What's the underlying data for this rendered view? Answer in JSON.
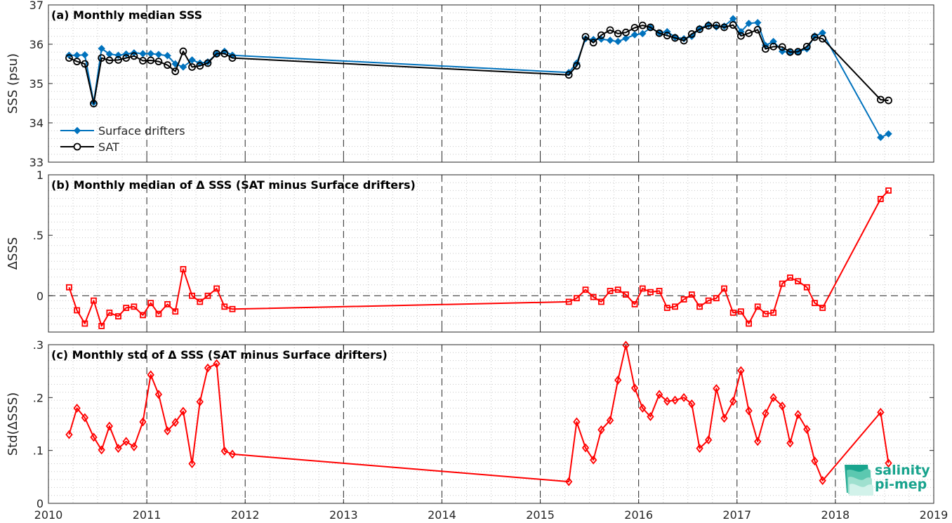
{
  "logo": {
    "line1": "salinity",
    "line2": "pi-mep",
    "color": "#18a38d"
  },
  "colors": {
    "drifters": "#0072bd",
    "sat": "#000000",
    "delta": "#ff0000",
    "grid": "#c8c8c8"
  },
  "chart_data": [
    {
      "type": "line",
      "title": "(a) Monthly median SSS",
      "ylabel": "SSS (psu)",
      "xlim": [
        2010,
        2019
      ],
      "ylim": [
        33,
        37
      ],
      "yticks": [
        33,
        34,
        35,
        36,
        37
      ],
      "xticks": [
        2010,
        2011,
        2012,
        2013,
        2014,
        2015,
        2016,
        2017,
        2018,
        2019
      ],
      "grid": "dotted",
      "legend_position": "lower-left",
      "x": [
        2010.21,
        2010.29,
        2010.37,
        2010.46,
        2010.54,
        2010.62,
        2010.71,
        2010.79,
        2010.87,
        2010.96,
        2011.04,
        2011.12,
        2011.21,
        2011.29,
        2011.37,
        2011.46,
        2011.54,
        2011.62,
        2011.71,
        2011.79,
        2011.87,
        2015.29,
        2015.37,
        2015.46,
        2015.54,
        2015.62,
        2015.71,
        2015.79,
        2015.87,
        2015.96,
        2016.04,
        2016.12,
        2016.21,
        2016.29,
        2016.37,
        2016.46,
        2016.54,
        2016.62,
        2016.71,
        2016.79,
        2016.87,
        2016.96,
        2017.04,
        2017.12,
        2017.21,
        2017.29,
        2017.37,
        2017.46,
        2017.54,
        2017.62,
        2017.71,
        2017.79,
        2017.87,
        2018.46,
        2018.54
      ],
      "series": [
        {
          "name": "Surface drifters",
          "marker": "diamond-filled",
          "values": [
            35.72,
            35.72,
            35.73,
            34.52,
            35.89,
            35.75,
            35.72,
            35.75,
            35.78,
            35.76,
            35.76,
            35.74,
            35.71,
            35.5,
            35.42,
            35.6,
            35.52,
            35.55,
            35.75,
            35.82,
            35.72,
            35.28,
            35.52,
            36.14,
            36.12,
            36.13,
            36.1,
            36.07,
            36.15,
            36.24,
            36.27,
            36.42,
            36.29,
            36.32,
            36.18,
            36.14,
            36.2,
            36.4,
            36.5,
            36.44,
            36.46,
            36.65,
            36.32,
            36.53,
            36.55,
            35.97,
            36.07,
            35.82,
            35.79,
            35.81,
            35.88,
            36.21,
            36.29,
            33.63,
            33.72
          ]
        },
        {
          "name": "SAT",
          "marker": "circle-open",
          "values": [
            35.65,
            35.56,
            35.5,
            34.49,
            35.65,
            35.59,
            35.6,
            35.65,
            35.7,
            35.58,
            35.59,
            35.56,
            35.47,
            35.31,
            35.82,
            35.42,
            35.45,
            35.52,
            35.76,
            35.76,
            35.65,
            35.22,
            35.45,
            36.19,
            36.04,
            36.23,
            36.36,
            36.27,
            36.3,
            36.42,
            36.48,
            36.43,
            36.28,
            36.22,
            36.16,
            36.09,
            36.26,
            36.38,
            36.47,
            36.48,
            36.43,
            36.49,
            36.21,
            36.28,
            36.37,
            35.88,
            35.94,
            35.93,
            35.8,
            35.81,
            35.94,
            36.18,
            36.14,
            34.59,
            34.57
          ]
        }
      ]
    },
    {
      "type": "line",
      "title": "(b) Monthly median of Δ SSS (SAT minus Surface drifters)",
      "ylabel": "ΔSSS",
      "xlim": [
        2010,
        2019
      ],
      "ylim": [
        -0.3,
        1
      ],
      "yticks": [
        0,
        0.5,
        1
      ],
      "xticks": [
        2010,
        2011,
        2012,
        2013,
        2014,
        2015,
        2016,
        2017,
        2018,
        2019
      ],
      "grid": "dotted",
      "zero_line": "dashed",
      "x": [
        2010.21,
        2010.29,
        2010.37,
        2010.46,
        2010.54,
        2010.62,
        2010.71,
        2010.79,
        2010.87,
        2010.96,
        2011.04,
        2011.12,
        2011.21,
        2011.29,
        2011.37,
        2011.46,
        2011.54,
        2011.62,
        2011.71,
        2011.79,
        2011.87,
        2015.29,
        2015.37,
        2015.46,
        2015.54,
        2015.62,
        2015.71,
        2015.79,
        2015.87,
        2015.96,
        2016.04,
        2016.12,
        2016.21,
        2016.29,
        2016.37,
        2016.46,
        2016.54,
        2016.62,
        2016.71,
        2016.79,
        2016.87,
        2016.96,
        2017.04,
        2017.12,
        2017.21,
        2017.29,
        2017.37,
        2017.46,
        2017.54,
        2017.62,
        2017.71,
        2017.79,
        2017.87,
        2018.46,
        2018.54
      ],
      "series": [
        {
          "marker": "square-open",
          "values": [
            0.07,
            -0.12,
            -0.23,
            -0.04,
            -0.25,
            -0.14,
            -0.17,
            -0.1,
            -0.09,
            -0.16,
            -0.06,
            -0.15,
            -0.07,
            -0.13,
            0.22,
            0.0,
            -0.05,
            0.0,
            0.06,
            -0.09,
            -0.11,
            -0.05,
            -0.02,
            0.05,
            -0.01,
            -0.05,
            0.04,
            0.05,
            0.01,
            -0.07,
            0.06,
            0.03,
            0.04,
            -0.1,
            -0.09,
            -0.03,
            0.01,
            -0.09,
            -0.04,
            -0.02,
            0.06,
            -0.14,
            -0.13,
            -0.23,
            -0.09,
            -0.15,
            -0.14,
            0.1,
            0.15,
            0.12,
            0.07,
            -0.06,
            -0.1,
            0.8,
            0.87
          ]
        }
      ]
    },
    {
      "type": "line",
      "title": "(c) Monthly std of Δ SSS (SAT minus Surface drifters)",
      "ylabel": "Std(ΔSSS)",
      "xlim": [
        2010,
        2019
      ],
      "ylim": [
        0,
        0.3
      ],
      "yticks": [
        0,
        0.1,
        0.2,
        0.3
      ],
      "xticks": [
        2010,
        2011,
        2012,
        2013,
        2014,
        2015,
        2016,
        2017,
        2018,
        2019
      ],
      "grid": "dotted",
      "x": [
        2010.21,
        2010.29,
        2010.37,
        2010.46,
        2010.54,
        2010.62,
        2010.71,
        2010.79,
        2010.87,
        2010.96,
        2011.04,
        2011.12,
        2011.21,
        2011.29,
        2011.37,
        2011.46,
        2011.54,
        2011.62,
        2011.71,
        2011.79,
        2011.87,
        2015.29,
        2015.37,
        2015.46,
        2015.54,
        2015.62,
        2015.71,
        2015.79,
        2015.87,
        2015.96,
        2016.04,
        2016.12,
        2016.21,
        2016.29,
        2016.37,
        2016.46,
        2016.54,
        2016.62,
        2016.71,
        2016.79,
        2016.87,
        2016.96,
        2017.04,
        2017.12,
        2017.21,
        2017.29,
        2017.37,
        2017.46,
        2017.54,
        2017.62,
        2017.71,
        2017.79,
        2017.87,
        2018.46,
        2018.54
      ],
      "series": [
        {
          "marker": "diamond-open",
          "values": [
            0.13,
            0.18,
            0.162,
            0.125,
            0.101,
            0.146,
            0.104,
            0.117,
            0.107,
            0.154,
            0.243,
            0.206,
            0.137,
            0.153,
            0.174,
            0.075,
            0.192,
            0.256,
            0.264,
            0.099,
            0.093,
            0.041,
            0.154,
            0.105,
            0.082,
            0.139,
            0.157,
            0.233,
            0.299,
            0.218,
            0.18,
            0.164,
            0.206,
            0.193,
            0.195,
            0.2,
            0.188,
            0.104,
            0.12,
            0.217,
            0.161,
            0.193,
            0.251,
            0.175,
            0.117,
            0.17,
            0.2,
            0.184,
            0.114,
            0.168,
            0.14,
            0.08,
            0.043,
            0.172,
            0.076
          ]
        }
      ]
    }
  ]
}
